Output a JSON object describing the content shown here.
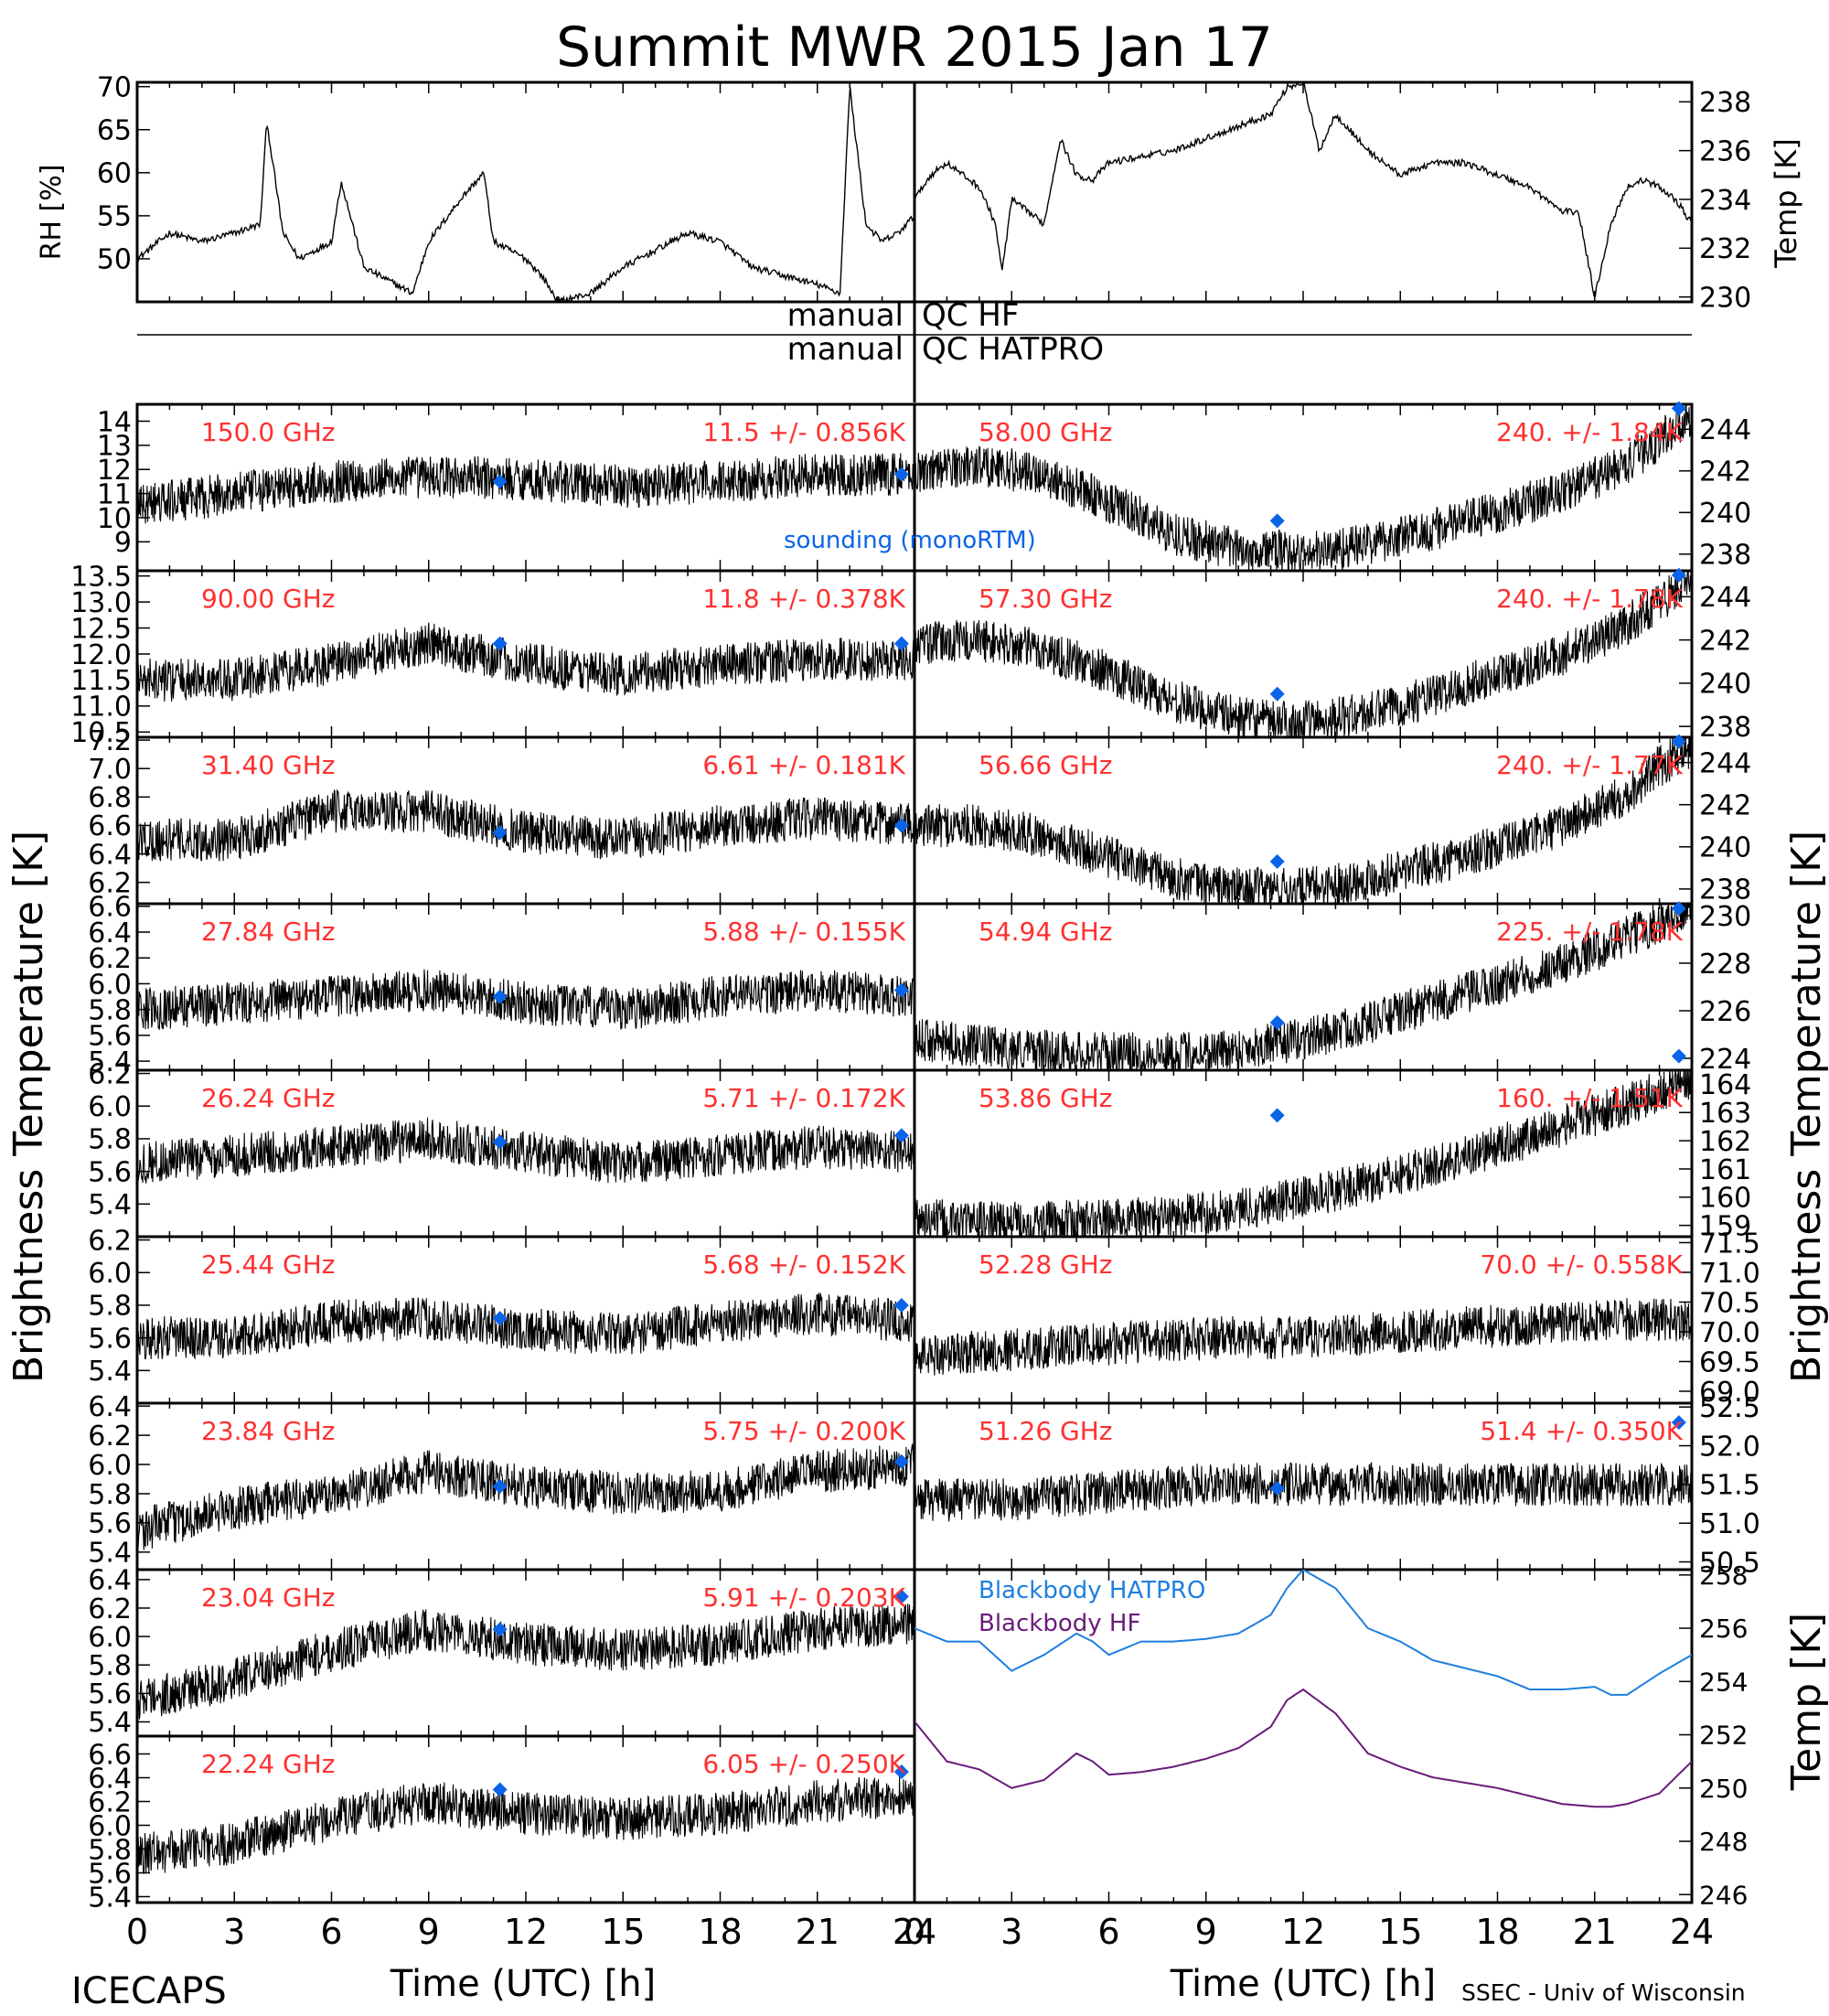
{
  "title": "Summit MWR 2015 Jan 17",
  "footer": {
    "left": "ICECAPS",
    "right": "SSEC - Univ of Wisconsin"
  },
  "colors": {
    "label_red": "#ff3030",
    "sounding_blue": "#0a64e8",
    "hatpro_blue": "#1e7fe0",
    "hf_purple": "#6a1b7a",
    "trace": "#000000"
  },
  "qc": {
    "left": "manual",
    "hf": "QC HF",
    "hatpro": "QC HATPRO"
  },
  "axes": {
    "xlabel": "Time (UTC) [h]",
    "xticks": [
      "0",
      "3",
      "6",
      "9",
      "12",
      "15",
      "18",
      "21",
      "24"
    ],
    "left_tb_label": "Brightness Temperature [K]",
    "right_tb_label": "Brightness Temperature [K]",
    "rh_label": "RH [%]",
    "temp_label": "Temp [K]",
    "bb_temp_label": "Temp [K]"
  },
  "legend": {
    "sounding": "sounding (monoRTM)",
    "bb_hatpro": "Blackbody HATPRO",
    "bb_hf": "Blackbody HF"
  },
  "chart_data": [
    {
      "type": "line",
      "id": "rh",
      "ylim": [
        45,
        70.5
      ],
      "yticks": [
        "50",
        "55",
        "60",
        "65",
        "70"
      ],
      "x": [
        0,
        1,
        2,
        3,
        3.8,
        4,
        4.5,
        5,
        6,
        6.3,
        7,
        8,
        8.5,
        9,
        10,
        10.7,
        11,
        12,
        12.5,
        13,
        14,
        15,
        16,
        17,
        18,
        19,
        20,
        21,
        21.7,
        22,
        22.5,
        23,
        23.5,
        24
      ],
      "values": [
        50,
        53,
        52,
        53,
        54,
        66,
        53,
        50,
        52,
        59,
        49,
        47,
        46,
        52,
        57,
        60,
        52,
        50,
        48,
        45,
        46,
        49,
        51,
        53,
        52,
        49,
        48,
        47,
        46,
        70,
        54,
        52,
        53,
        55
      ]
    },
    {
      "type": "line",
      "id": "temp",
      "ylim": [
        229.8,
        238.8
      ],
      "yticks": [
        "230",
        "232",
        "234",
        "236",
        "238"
      ],
      "x": [
        0,
        0.5,
        1,
        2,
        2.5,
        2.7,
        3,
        4,
        4.5,
        5,
        5.5,
        6,
        8,
        9,
        10,
        11,
        11.5,
        12,
        12.5,
        13,
        14,
        15,
        16,
        17,
        18,
        19,
        20,
        20.5,
        21,
        21.5,
        22,
        22.5,
        23,
        23.5,
        24
      ],
      "values": [
        234,
        235,
        235.5,
        234.5,
        233,
        231,
        234,
        233,
        236.5,
        235,
        234.8,
        235.5,
        236,
        236.5,
        237,
        237.5,
        238.6,
        238.8,
        236,
        237.5,
        236,
        235,
        235.5,
        235.5,
        235,
        234.5,
        233.5,
        233.5,
        230,
        233,
        234.5,
        234.8,
        234.5,
        234,
        233
      ]
    },
    {
      "type": "line",
      "id": "tb150",
      "channel": "150.0 GHz",
      "stat": "11.5 +/- 0.856K",
      "ylim": [
        7.8,
        14.7
      ],
      "yticks": [
        "9",
        "10",
        "11",
        "12",
        "13",
        "14"
      ],
      "x": [
        0,
        3,
        6,
        9,
        12,
        15,
        18,
        21,
        24
      ],
      "values": [
        10.5,
        11,
        11.5,
        11.7,
        11.6,
        11.3,
        11.5,
        11.8,
        11.8
      ],
      "sounding": [
        [
          11.2,
          11.5
        ],
        [
          23.6,
          11.8
        ]
      ]
    },
    {
      "type": "line",
      "id": "tb58",
      "channel": "58.00 GHz",
      "stat": "240. +/- 1.84K",
      "ylim": [
        237.2,
        245.2
      ],
      "yticks": [
        "238",
        "240",
        "242",
        "244"
      ],
      "x": [
        0,
        2,
        4,
        6,
        8,
        10,
        11,
        12,
        14,
        16,
        18,
        20,
        22,
        23,
        24
      ],
      "values": [
        242,
        242.3,
        241.8,
        240.5,
        239,
        238.2,
        238.2,
        238,
        238.5,
        239.2,
        240,
        241,
        242.3,
        243.5,
        244.8
      ],
      "sounding": [
        [
          11.2,
          239.6
        ],
        [
          23.6,
          245
        ]
      ]
    },
    {
      "type": "line",
      "id": "tb90",
      "channel": "90.00 GHz",
      "stat": "11.8 +/- 0.378K",
      "ylim": [
        10.4,
        13.6
      ],
      "yticks": [
        "10.5",
        "11.0",
        "11.5",
        "12.0",
        "12.5",
        "13.0",
        "13.5"
      ],
      "x": [
        0,
        3,
        6,
        9,
        12,
        15,
        18,
        21,
        24
      ],
      "values": [
        11.5,
        11.5,
        11.8,
        12.2,
        11.8,
        11.6,
        11.8,
        11.9,
        11.9
      ],
      "sounding": [
        [
          11.2,
          12.2
        ],
        [
          23.6,
          12.2
        ]
      ]
    },
    {
      "type": "line",
      "id": "tb573",
      "channel": "57.30 GHz",
      "stat": "240. +/- 1.78K",
      "ylim": [
        237.5,
        245.2
      ],
      "yticks": [
        "238",
        "240",
        "242",
        "244"
      ],
      "x": [
        0,
        2,
        4,
        6,
        8,
        10,
        11,
        12,
        14,
        16,
        18,
        20,
        22,
        23,
        24
      ],
      "values": [
        241.8,
        242,
        241.5,
        240.5,
        239.2,
        238.4,
        238.2,
        238.2,
        238.6,
        239.4,
        240.4,
        241.3,
        242.7,
        243.8,
        244.8
      ],
      "sounding": [
        [
          11.2,
          239.5
        ],
        [
          23.6,
          245
        ]
      ]
    },
    {
      "type": "line",
      "id": "tb314",
      "channel": "31.40 GHz",
      "stat": "6.61 +/- 0.181K",
      "ylim": [
        6.05,
        7.22
      ],
      "yticks": [
        "6.2",
        "6.4",
        "6.6",
        "6.8",
        "7.0",
        "7.2"
      ],
      "x": [
        0,
        3,
        6,
        9,
        12,
        15,
        18,
        21,
        24
      ],
      "values": [
        6.5,
        6.5,
        6.7,
        6.7,
        6.55,
        6.5,
        6.6,
        6.65,
        6.6
      ],
      "sounding": [
        [
          11.2,
          6.55
        ],
        [
          23.6,
          6.6
        ]
      ]
    },
    {
      "type": "line",
      "id": "tb5666",
      "channel": "56.66 GHz",
      "stat": "240. +/- 1.77K",
      "ylim": [
        237.3,
        245.2
      ],
      "yticks": [
        "238",
        "240",
        "242",
        "244"
      ],
      "x": [
        0,
        2,
        4,
        6,
        8,
        10,
        11,
        12,
        14,
        16,
        18,
        20,
        22,
        23,
        24
      ],
      "values": [
        241,
        241,
        240.5,
        239.5,
        238.5,
        238,
        238,
        238,
        238.5,
        239.2,
        240,
        241,
        242.5,
        243.8,
        244.8
      ],
      "sounding": [
        [
          11.2,
          239.3
        ],
        [
          23.6,
          245
        ]
      ]
    },
    {
      "type": "line",
      "id": "tb2784",
      "channel": "27.84 GHz",
      "stat": "5.88 +/- 0.155K",
      "ylim": [
        5.33,
        6.62
      ],
      "yticks": [
        "5.4",
        "5.6",
        "5.8",
        "6.0",
        "6.2",
        "6.4",
        "6.6"
      ],
      "x": [
        0,
        3,
        6,
        9,
        12,
        15,
        18,
        21,
        24
      ],
      "values": [
        5.8,
        5.85,
        5.9,
        5.95,
        5.85,
        5.8,
        5.9,
        5.95,
        5.9
      ],
      "sounding": [
        [
          11.2,
          5.9
        ],
        [
          23.6,
          5.95
        ]
      ]
    },
    {
      "type": "line",
      "id": "tb5494",
      "channel": "54.94 GHz",
      "stat": "225. +/- 1.78K",
      "ylim": [
        223.5,
        230.5
      ],
      "yticks": [
        "224",
        "226",
        "228",
        "230"
      ],
      "x": [
        0,
        2,
        4,
        6,
        8,
        10,
        12,
        14,
        16,
        18,
        20,
        22,
        24
      ],
      "values": [
        224.8,
        224.5,
        224.3,
        224.2,
        224.2,
        224.4,
        224.8,
        225.5,
        226.3,
        227.1,
        228,
        229.1,
        230.3
      ],
      "sounding": [
        [
          11.2,
          225.5
        ],
        [
          23.6,
          230.3
        ]
      ]
    },
    {
      "type": "line",
      "id": "tb2624",
      "channel": "26.24 GHz",
      "stat": "5.71 +/- 0.172K",
      "ylim": [
        5.2,
        6.22
      ],
      "yticks": [
        "5.4",
        "5.6",
        "5.8",
        "6.0",
        "6.2"
      ],
      "x": [
        0,
        3,
        6,
        9,
        12,
        15,
        18,
        21,
        24
      ],
      "values": [
        5.65,
        5.7,
        5.75,
        5.8,
        5.72,
        5.65,
        5.7,
        5.75,
        5.72
      ],
      "sounding": [
        [
          11.2,
          5.78
        ],
        [
          23.6,
          5.82
        ]
      ]
    },
    {
      "type": "line",
      "id": "tb5386",
      "channel": "53.86 GHz",
      "stat": "160. +/- 1.51K",
      "ylim": [
        158.6,
        164.5
      ],
      "yticks": [
        "159",
        "160",
        "161",
        "162",
        "163",
        "164"
      ],
      "x": [
        0,
        2,
        4,
        6,
        8,
        10,
        12,
        14,
        16,
        18,
        20,
        22,
        24
      ],
      "values": [
        159.2,
        159.1,
        159.1,
        159.2,
        159.3,
        159.6,
        160,
        160.5,
        161.1,
        161.8,
        162.5,
        163.3,
        164.2
      ],
      "sounding": [
        [
          11.2,
          162.9
        ],
        [
          23.6,
          165
        ]
      ]
    },
    {
      "type": "line",
      "id": "tb2544",
      "channel": "25.44 GHz",
      "stat": "5.68 +/- 0.152K",
      "ylim": [
        5.2,
        6.22
      ],
      "yticks": [
        "5.4",
        "5.6",
        "5.8",
        "6.0",
        "6.2"
      ],
      "x": [
        0,
        3,
        6,
        9,
        12,
        15,
        18,
        21,
        24
      ],
      "values": [
        5.6,
        5.6,
        5.7,
        5.72,
        5.65,
        5.62,
        5.7,
        5.75,
        5.7
      ],
      "sounding": [
        [
          11.2,
          5.72
        ],
        [
          23.6,
          5.8
        ]
      ]
    },
    {
      "type": "line",
      "id": "tb5228",
      "channel": "52.28 GHz",
      "stat": "70.0 +/- 0.558K",
      "ylim": [
        68.8,
        71.6
      ],
      "yticks": [
        "69.0",
        "69.5",
        "70.0",
        "70.5",
        "71.0",
        "71.5"
      ],
      "x": [
        0,
        3,
        6,
        9,
        12,
        15,
        18,
        21,
        24
      ],
      "values": [
        69.6,
        69.7,
        69.8,
        69.9,
        69.9,
        70,
        70.1,
        70.2,
        70.2
      ],
      "sounding": []
    },
    {
      "type": "line",
      "id": "tb2384",
      "channel": "23.84 GHz",
      "stat": "5.75 +/- 0.200K",
      "ylim": [
        5.28,
        6.42
      ],
      "yticks": [
        "5.4",
        "5.6",
        "5.8",
        "6.0",
        "6.2",
        "6.4"
      ],
      "x": [
        0,
        3,
        6,
        9,
        12,
        15,
        18,
        21,
        24
      ],
      "values": [
        5.55,
        5.7,
        5.8,
        5.95,
        5.85,
        5.8,
        5.82,
        5.95,
        6.0
      ],
      "sounding": [
        [
          11.2,
          5.85
        ],
        [
          23.6,
          6.02
        ]
      ]
    },
    {
      "type": "line",
      "id": "tb5126",
      "channel": "51.26 GHz",
      "stat": "51.4 +/- 0.350K",
      "ylim": [
        50.4,
        52.55
      ],
      "yticks": [
        "50.5",
        "51.0",
        "51.5",
        "52.0",
        "52.5"
      ],
      "x": [
        0,
        3,
        6,
        9,
        12,
        15,
        18,
        21,
        24
      ],
      "values": [
        51.3,
        51.3,
        51.4,
        51.5,
        51.5,
        51.5,
        51.5,
        51.5,
        51.5
      ],
      "sounding": [
        [
          11.2,
          51.45
        ],
        [
          23.6,
          52.3
        ]
      ]
    },
    {
      "type": "line",
      "id": "tb2304",
      "channel": "23.04 GHz",
      "stat": "5.91 +/- 0.203K",
      "ylim": [
        5.3,
        6.47
      ],
      "yticks": [
        "5.4",
        "5.6",
        "5.8",
        "6.0",
        "6.2",
        "6.4"
      ],
      "x": [
        0,
        3,
        6,
        9,
        12,
        15,
        18,
        21,
        24
      ],
      "values": [
        5.55,
        5.7,
        5.9,
        6.05,
        5.95,
        5.9,
        5.95,
        6.05,
        6.1
      ],
      "sounding": [
        [
          11.2,
          6.05
        ],
        [
          23.6,
          6.28
        ]
      ]
    },
    {
      "type": "line",
      "id": "bb",
      "ylim": [
        245.7,
        258.2
      ],
      "yticks": [
        "246",
        "248",
        "250",
        "252",
        "254",
        "256",
        "258"
      ],
      "series": [
        {
          "name": "Blackbody HATPRO",
          "x": [
            0,
            1,
            2,
            3,
            4,
            5,
            5.5,
            6,
            7,
            8,
            9,
            10,
            11,
            11.5,
            12,
            13,
            14,
            15,
            16,
            17,
            18,
            19,
            20,
            21,
            21.5,
            22,
            23,
            24
          ],
          "values": [
            256,
            255.5,
            255.5,
            254.4,
            255,
            255.8,
            255.5,
            255,
            255.5,
            255.5,
            255.6,
            255.8,
            256.5,
            257.5,
            258.2,
            257.5,
            256,
            255.5,
            254.8,
            254.5,
            254.2,
            253.7,
            253.7,
            253.8,
            253.5,
            253.5,
            254.3,
            255
          ]
        },
        {
          "name": "Blackbody HF",
          "x": [
            0,
            1,
            2,
            3,
            4,
            5,
            5.5,
            6,
            7,
            8,
            9,
            10,
            11,
            11.5,
            12,
            13,
            14,
            15,
            16,
            17,
            18,
            19,
            20,
            21,
            21.5,
            22,
            23,
            24
          ],
          "values": [
            252.5,
            251,
            250.7,
            250,
            250.3,
            251.3,
            251,
            250.5,
            250.6,
            250.8,
            251.1,
            251.5,
            252.3,
            253.3,
            253.7,
            252.8,
            251.3,
            250.8,
            250.4,
            250.2,
            250,
            249.7,
            249.4,
            249.3,
            249.3,
            249.4,
            249.8,
            251
          ]
        }
      ]
    },
    {
      "type": "line",
      "id": "tb2224",
      "channel": "22.24 GHz",
      "stat": "6.05 +/- 0.250K",
      "ylim": [
        5.35,
        6.75
      ],
      "yticks": [
        "5.4",
        "5.6",
        "5.8",
        "6.0",
        "6.2",
        "6.4",
        "6.6"
      ],
      "x": [
        0,
        3,
        6,
        9,
        12,
        15,
        18,
        21,
        24
      ],
      "values": [
        5.75,
        5.85,
        6.05,
        6.2,
        6.1,
        6.05,
        6.1,
        6.2,
        6.25
      ],
      "sounding": [
        [
          11.2,
          6.3
        ],
        [
          23.6,
          6.45
        ]
      ]
    }
  ]
}
